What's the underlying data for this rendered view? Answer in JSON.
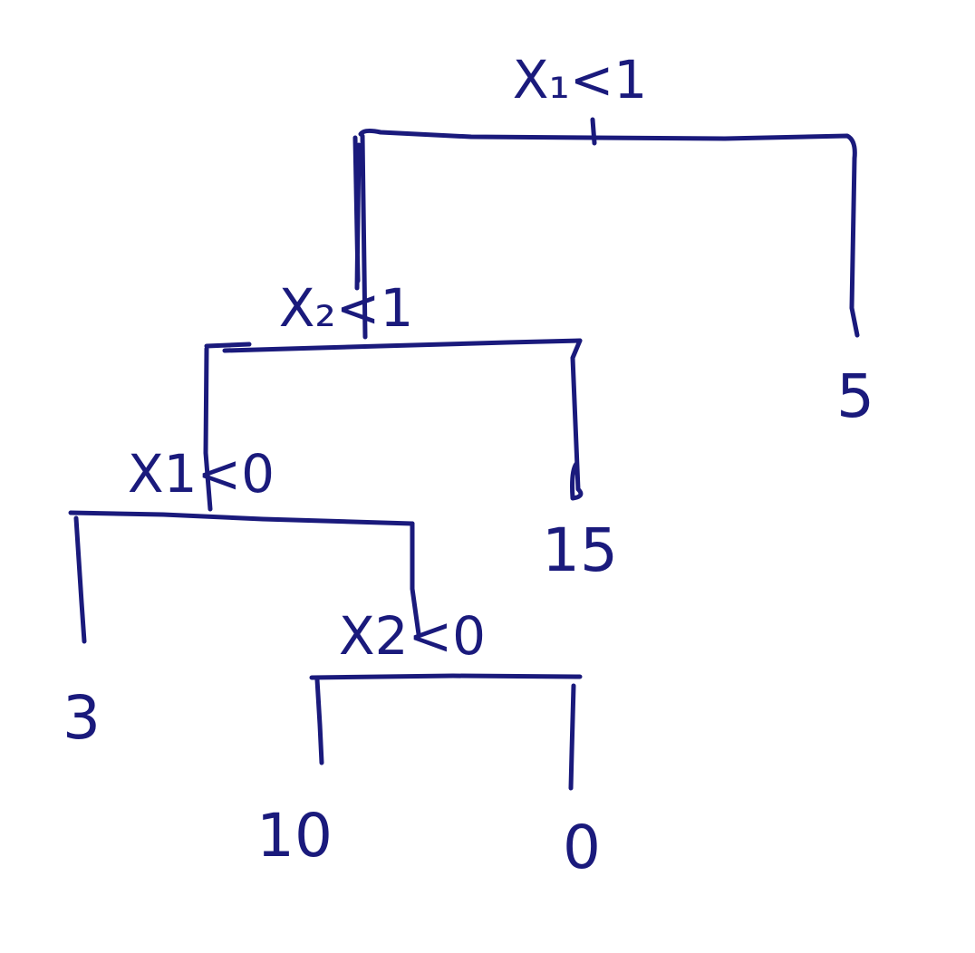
{
  "colors": {
    "ink": "#1a1a7c",
    "background": "#ffffff"
  },
  "tree": {
    "root": {
      "split": "X₁<1"
    },
    "node_x2_lt_1": {
      "split": "X₂<1"
    },
    "node_x1_lt_0": {
      "split": "X1<0"
    },
    "node_x2_lt_0": {
      "split": "X2<0"
    },
    "leaves": {
      "leaf_5": "5",
      "leaf_15": "15",
      "leaf_3": "3",
      "leaf_10": "10",
      "leaf_0": "0"
    }
  }
}
